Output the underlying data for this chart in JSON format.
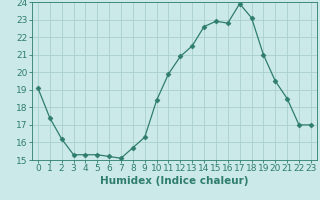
{
  "x": [
    0,
    1,
    2,
    3,
    4,
    5,
    6,
    7,
    8,
    9,
    10,
    11,
    12,
    13,
    14,
    15,
    16,
    17,
    18,
    19,
    20,
    21,
    22,
    23
  ],
  "y": [
    19.1,
    17.4,
    16.2,
    15.3,
    15.3,
    15.3,
    15.2,
    15.1,
    15.7,
    16.3,
    18.4,
    19.9,
    20.9,
    21.5,
    22.6,
    22.9,
    22.8,
    23.9,
    23.1,
    21.0,
    19.5,
    18.5,
    17.0,
    17.0
  ],
  "line_color": "#2e7d6e",
  "marker": "D",
  "marker_size": 2.5,
  "bg_color": "#cce9e9",
  "grid_color": "#aacfcf",
  "xlabel": "Humidex (Indice chaleur)",
  "xlim": [
    -0.5,
    23.5
  ],
  "ylim": [
    15,
    24
  ],
  "yticks": [
    15,
    16,
    17,
    18,
    19,
    20,
    21,
    22,
    23,
    24
  ],
  "xticks": [
    0,
    1,
    2,
    3,
    4,
    5,
    6,
    7,
    8,
    9,
    10,
    11,
    12,
    13,
    14,
    15,
    16,
    17,
    18,
    19,
    20,
    21,
    22,
    23
  ],
  "tick_color": "#2e7d6e",
  "label_color": "#2e7d6e",
  "tick_fontsize": 6.5,
  "xlabel_fontsize": 7.5
}
